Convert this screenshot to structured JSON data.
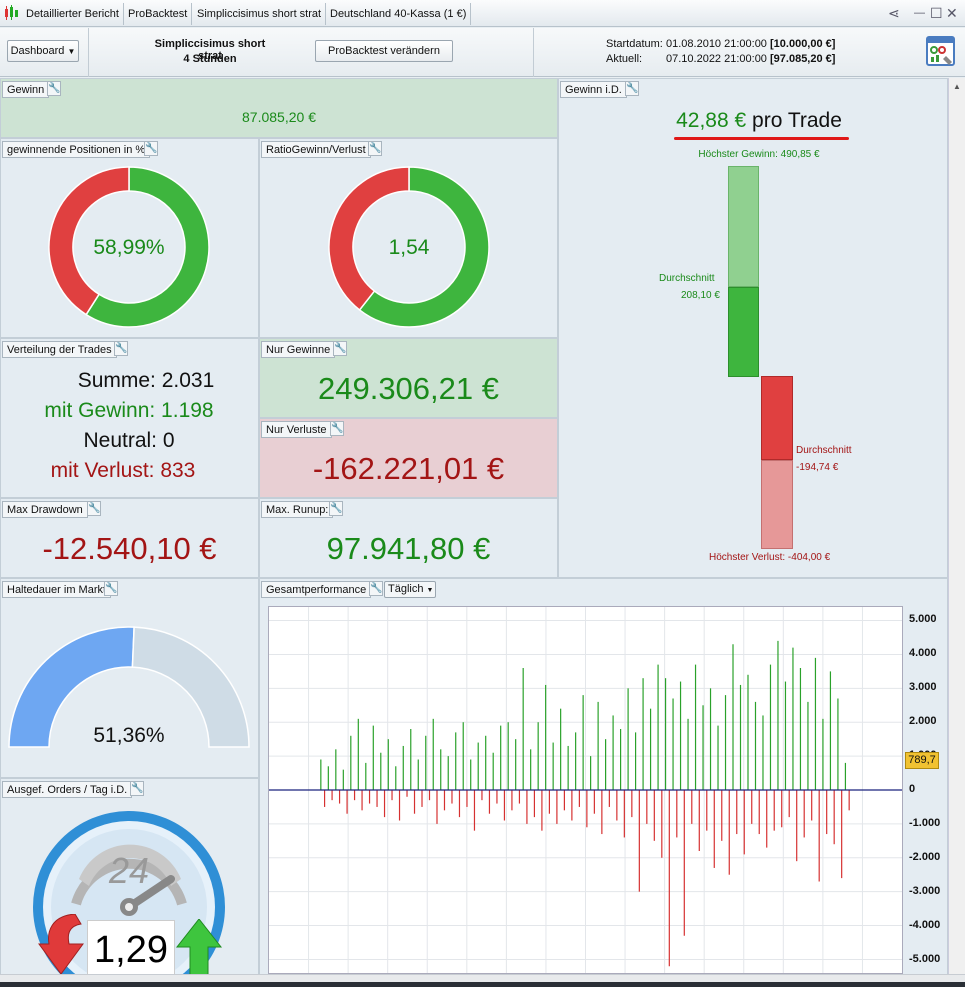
{
  "tabs": [
    "Detaillierter Bericht",
    "ProBacktest",
    "Simpliccisimus short strat",
    "Deutschland 40-Kassa (1 €)"
  ],
  "window_controls": {
    "share": "⋖",
    "minimize": "—",
    "maximize": "☐",
    "close": "✕"
  },
  "header": {
    "dashboard_label": "Dashboard",
    "strategy_name": "Simpliccisimus short strat",
    "timeframe": "4 Stunden",
    "change_button": "ProBacktest verändern",
    "start_label": "Startdatum:",
    "start_value": "01.08.2010 21:00:00",
    "start_capital": "[10.000,00 €]",
    "current_label": "Aktuell:",
    "current_value": "07.10.2022 21:00:00",
    "current_capital": "[97.085,20 €]"
  },
  "gewinn": {
    "title": "Gewinn",
    "value": "87.085,20 €"
  },
  "win_pct": {
    "title": "gewinnende Positionen in %",
    "value": "58,99%",
    "fraction": 0.5899
  },
  "ratio": {
    "title": "RatioGewinn/Verlust",
    "value": "1,54",
    "fraction": 0.606
  },
  "distribution": {
    "title": "Verteilung der Trades",
    "sum": "Summe: 2.031",
    "wins": "mit Gewinn: 1.198",
    "neutral": "Neutral: 0",
    "losses": "mit Verlust: 833"
  },
  "only_wins": {
    "title": "Nur Gewinne",
    "value": "249.306,21 €"
  },
  "only_losses": {
    "title": "Nur Verluste",
    "value": "-162.221,01 €"
  },
  "max_drawdown": {
    "title": "Max Drawdown",
    "value": "-12.540,10 €"
  },
  "max_runup": {
    "title": "Max. Runup:",
    "value": "97.941,80 €"
  },
  "per_trade": {
    "title": "Gewinn i.D.",
    "value": "42,88 €",
    "suffix": "pro Trade",
    "max_gain": "Höchster Gewinn: 490,85 €",
    "avg_gain_label": "Durchschnitt",
    "avg_gain": "208,10 €",
    "avg_loss_label": "Durchschnitt",
    "avg_loss": "-194,74 €",
    "max_loss": "Höchster Verlust: -404,00 €"
  },
  "holding": {
    "title": "Haltedauer im Markt",
    "value": "51,36%",
    "fraction": 0.5136
  },
  "orders": {
    "title": "Ausgef. Orders / Tag i.D.",
    "value": "1,29",
    "dial": "24"
  },
  "performance": {
    "title": "Gesamtperformance",
    "interval": "Täglich",
    "last_value": "789,7"
  },
  "colors": {
    "green": "#3eb53e",
    "red": "#e04040",
    "blue": "#6ea7f2"
  },
  "chart_data": {
    "type": "bar",
    "title": "",
    "ylim": [
      -5400,
      5400
    ],
    "yticks": [
      "5.000",
      "4.000",
      "3.000",
      "2.000",
      "1.000",
      "0",
      "-1.000",
      "-2.000",
      "-3.000",
      "-4.000",
      "-5.000"
    ],
    "ytick_values": [
      5000,
      4000,
      3000,
      2000,
      1000,
      0,
      -1000,
      -2000,
      -3000,
      -4000,
      -5000
    ],
    "grid": true,
    "series": [
      {
        "values": [
          900,
          -500,
          700,
          -300,
          1200,
          -400,
          600,
          -700,
          1600,
          -300,
          2100,
          -600,
          800,
          -400,
          1900,
          -500,
          1100,
          -800,
          1500,
          -300,
          700,
          -900,
          1300,
          -200,
          1800,
          -700,
          900,
          -500,
          1600,
          -300,
          2100,
          -1000,
          1200,
          -600,
          1000,
          -400,
          1700,
          -800,
          2000,
          -500,
          900,
          -1200,
          1400,
          -300,
          1600,
          -700,
          1100,
          -400,
          1900,
          -900,
          2000,
          -600,
          1500,
          -400,
          3600,
          -1000,
          1200,
          -800,
          2000,
          -1200,
          3100,
          -700,
          1400,
          -1000,
          2400,
          -600,
          1300,
          -900,
          1700,
          -500,
          2800,
          -1100,
          1000,
          -700,
          2600,
          -1300,
          1500,
          -500,
          2200,
          -900,
          1800,
          -1400,
          3000,
          -800,
          1700,
          -3000,
          3300,
          -1000,
          2400,
          -1500,
          3700,
          -2000,
          3300,
          -5200,
          2700,
          -1400,
          3200,
          -4300,
          2100,
          -1000,
          3700,
          -1800,
          2500,
          -1200,
          3000,
          -2300,
          1900,
          -1500,
          2800,
          -2500,
          4300,
          -1300,
          3100,
          -1900,
          3400,
          -1000,
          2600,
          -1300,
          2200,
          -1700,
          3700,
          -1200,
          4400,
          -1100,
          3200,
          -800,
          4200,
          -2100,
          3600,
          -1400,
          2600,
          -900,
          3900,
          -2700,
          2100,
          -1300,
          3500,
          -1600,
          2700,
          -2600,
          800,
          -600
        ]
      }
    ]
  }
}
